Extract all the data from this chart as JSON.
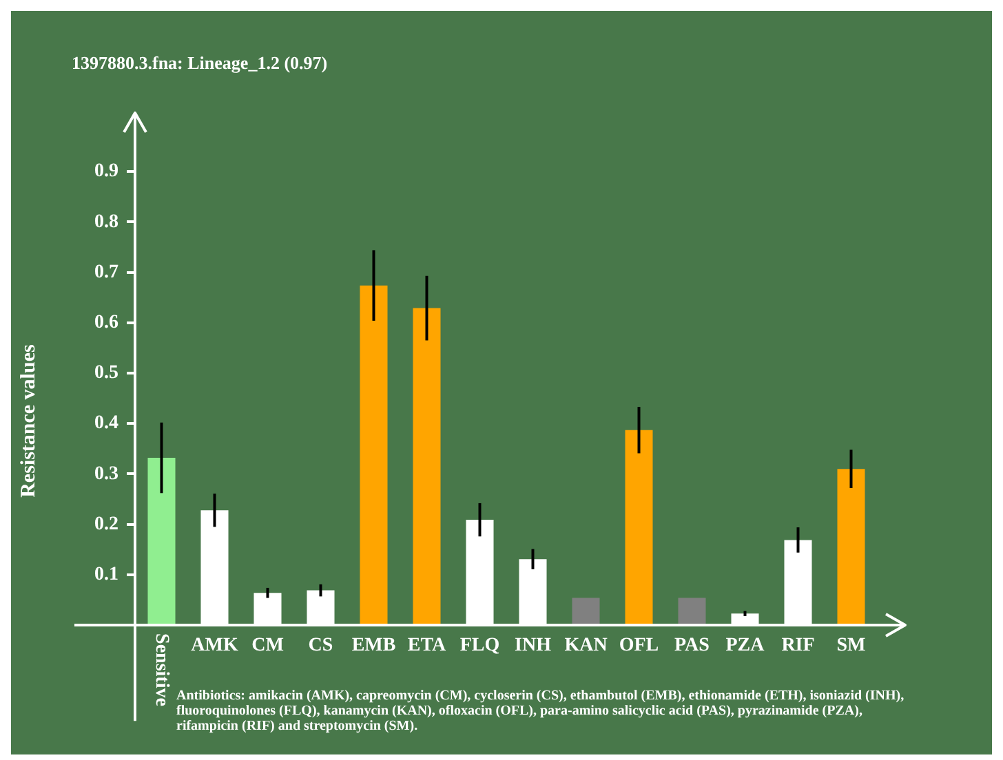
{
  "chart_data": {
    "type": "bar",
    "title": "1397880.3.fna: Lineage_1.2 (0.97)",
    "ylabel": "Resistance values",
    "categories": [
      "Sensitive",
      "AMK",
      "CM",
      "CS",
      "EMB",
      "ETA",
      "FLQ",
      "INH",
      "KAN",
      "OFL",
      "PAS",
      "PZA",
      "RIF",
      "SM"
    ],
    "values": [
      0.332,
      0.228,
      0.064,
      0.069,
      0.674,
      0.629,
      0.209,
      0.131,
      0.054,
      0.387,
      0.054,
      0.023,
      0.169,
      0.31
    ],
    "colors": [
      "#90ee90",
      "#ffffff",
      "#ffffff",
      "#ffffff",
      "#ffa500",
      "#ffa500",
      "#ffffff",
      "#ffffff",
      "#808080",
      "#ffa500",
      "#808080",
      "#ffffff",
      "#ffffff",
      "#ffa500"
    ],
    "errors": [
      0.07,
      0.033,
      0.01,
      0.012,
      0.07,
      0.064,
      0.033,
      0.02,
      null,
      0.046,
      null,
      0.005,
      0.025,
      0.038
    ],
    "ylim": [
      -0.19,
      1.0
    ],
    "yticks": [
      0.1,
      0.2,
      0.3,
      0.4,
      0.5,
      0.6,
      0.7,
      0.8,
      0.9
    ],
    "annotations": [
      "Antibiotics: amikacin (AMK), capreomycin (CM), cycloserin (CS), ethambutol (EMB), ethionamide (ETH), isoniazid (INH), fluoroquinolones (FLQ), kanamycin (KAN), ofloxacin (OFL), para-amino salicyclic acid (PAS), pyrazinamide (PZA), rifampicin (RIF) and streptomycin (SM)."
    ],
    "legend": false
  }
}
